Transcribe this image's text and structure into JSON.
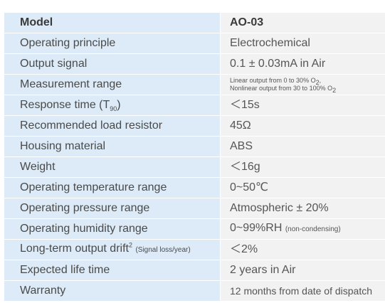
{
  "header": {
    "label": "Model",
    "value": "AO-03"
  },
  "rows": [
    {
      "label": "Operating principle",
      "value": "Electrochemical"
    },
    {
      "label": "Output signal",
      "value": "0.1 ± 0.03mA in Air"
    },
    {
      "label": "Measurement range",
      "value_line1_prefix": "Linear output from 0 to 30% O",
      "value_line1_sub": "2",
      "value_line1_suffix": ",",
      "value_line2_prefix": "Nonlinear output from 30 to 100% O",
      "value_line2_sub": "2"
    },
    {
      "label_prefix": "Response time (T",
      "label_sub": "90",
      "label_suffix": ")",
      "value": "＜15s"
    },
    {
      "label": "Recommended load resistor",
      "value": "45Ω"
    },
    {
      "label": "Housing material",
      "value": "ABS"
    },
    {
      "label": "Weight",
      "value": "＜16g"
    },
    {
      "label": "Operating temperature range",
      "value": "0~50℃"
    },
    {
      "label": "Operating pressure range",
      "value": "Atmospheric ± 20%"
    },
    {
      "label": "Operating humidity range",
      "value": "0~99%RH",
      "value_note": "(non-condensing)"
    },
    {
      "label_prefix": "Long-term output drift",
      "label_sup": "2",
      "label_note": "(Signal loss/year)",
      "value": "＜2%"
    },
    {
      "label": "Expected life time",
      "value": "2 years in Air"
    },
    {
      "label": "Warranty",
      "value": "12 months from date of dispatch"
    }
  ]
}
